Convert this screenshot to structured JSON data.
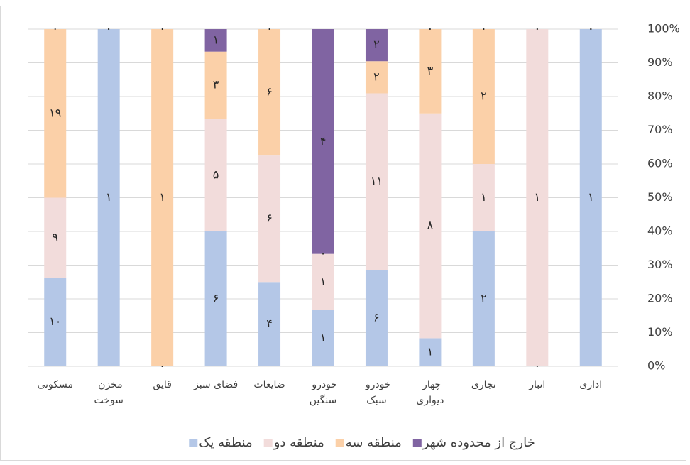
{
  "chart_data": {
    "type": "stacked_bar_100",
    "categories": [
      "مسکونی",
      "مخزن سوخت",
      "قایق",
      "فضای سبز",
      "ضایعات",
      "خودرو سنگین",
      "خودرو سبک",
      "چهار دیواری",
      "تجاری",
      "انبار",
      "اداری"
    ],
    "series": [
      {
        "name": "منطقه یک",
        "color": "#b4c7e7",
        "values": [
          10,
          1,
          0,
          6,
          4,
          1,
          6,
          1,
          2,
          0,
          1
        ],
        "value_labels": [
          "۱۰",
          "۱",
          "۰",
          "۶",
          "۴",
          "۱",
          "۶",
          "۱",
          "۲",
          "۰",
          "۱"
        ]
      },
      {
        "name": "منطقه دو",
        "color": "#f2dcdb",
        "values": [
          9,
          0,
          0,
          5,
          6,
          1,
          11,
          8,
          1,
          1,
          0
        ],
        "value_labels": [
          "۹",
          "۰",
          "۰",
          "۵",
          "۶",
          "۱",
          "۱۱",
          "۸",
          "۱",
          "۱",
          "۰"
        ]
      },
      {
        "name": "منطقه سه",
        "color": "#fbd0a8",
        "values": [
          19,
          0,
          1,
          3,
          6,
          0,
          2,
          3,
          2,
          0,
          0
        ],
        "value_labels": [
          "۱۹",
          "۰",
          "۱",
          "۳",
          "۶",
          "۰",
          "۲",
          "۳",
          "۲",
          "۰",
          "۰"
        ]
      },
      {
        "name": "خارج از محدوده شهر",
        "color": "#8064a2",
        "values": [
          0,
          0,
          0,
          1,
          0,
          4,
          2,
          0,
          0,
          0,
          0
        ],
        "value_labels": [
          "۰",
          "۰",
          "۰",
          "۱",
          "۰",
          "۴",
          "۲",
          "۰",
          "۰",
          "۰",
          "۰"
        ]
      }
    ],
    "ylim": [
      0,
      100
    ],
    "yticks": [
      {
        "value": 0,
        "label": "0%"
      },
      {
        "value": 10,
        "label": "10%"
      },
      {
        "value": 20,
        "label": "20%"
      },
      {
        "value": 30,
        "label": "30%"
      },
      {
        "value": 40,
        "label": "40%"
      },
      {
        "value": 50,
        "label": "50%"
      },
      {
        "value": 60,
        "label": "60%"
      },
      {
        "value": 70,
        "label": "70%"
      },
      {
        "value": 80,
        "label": "80%"
      },
      {
        "value": 90,
        "label": "90%"
      },
      {
        "value": 100,
        "label": "100%"
      }
    ],
    "grid": true,
    "yaxis_side": "right",
    "legend": "bottom"
  }
}
